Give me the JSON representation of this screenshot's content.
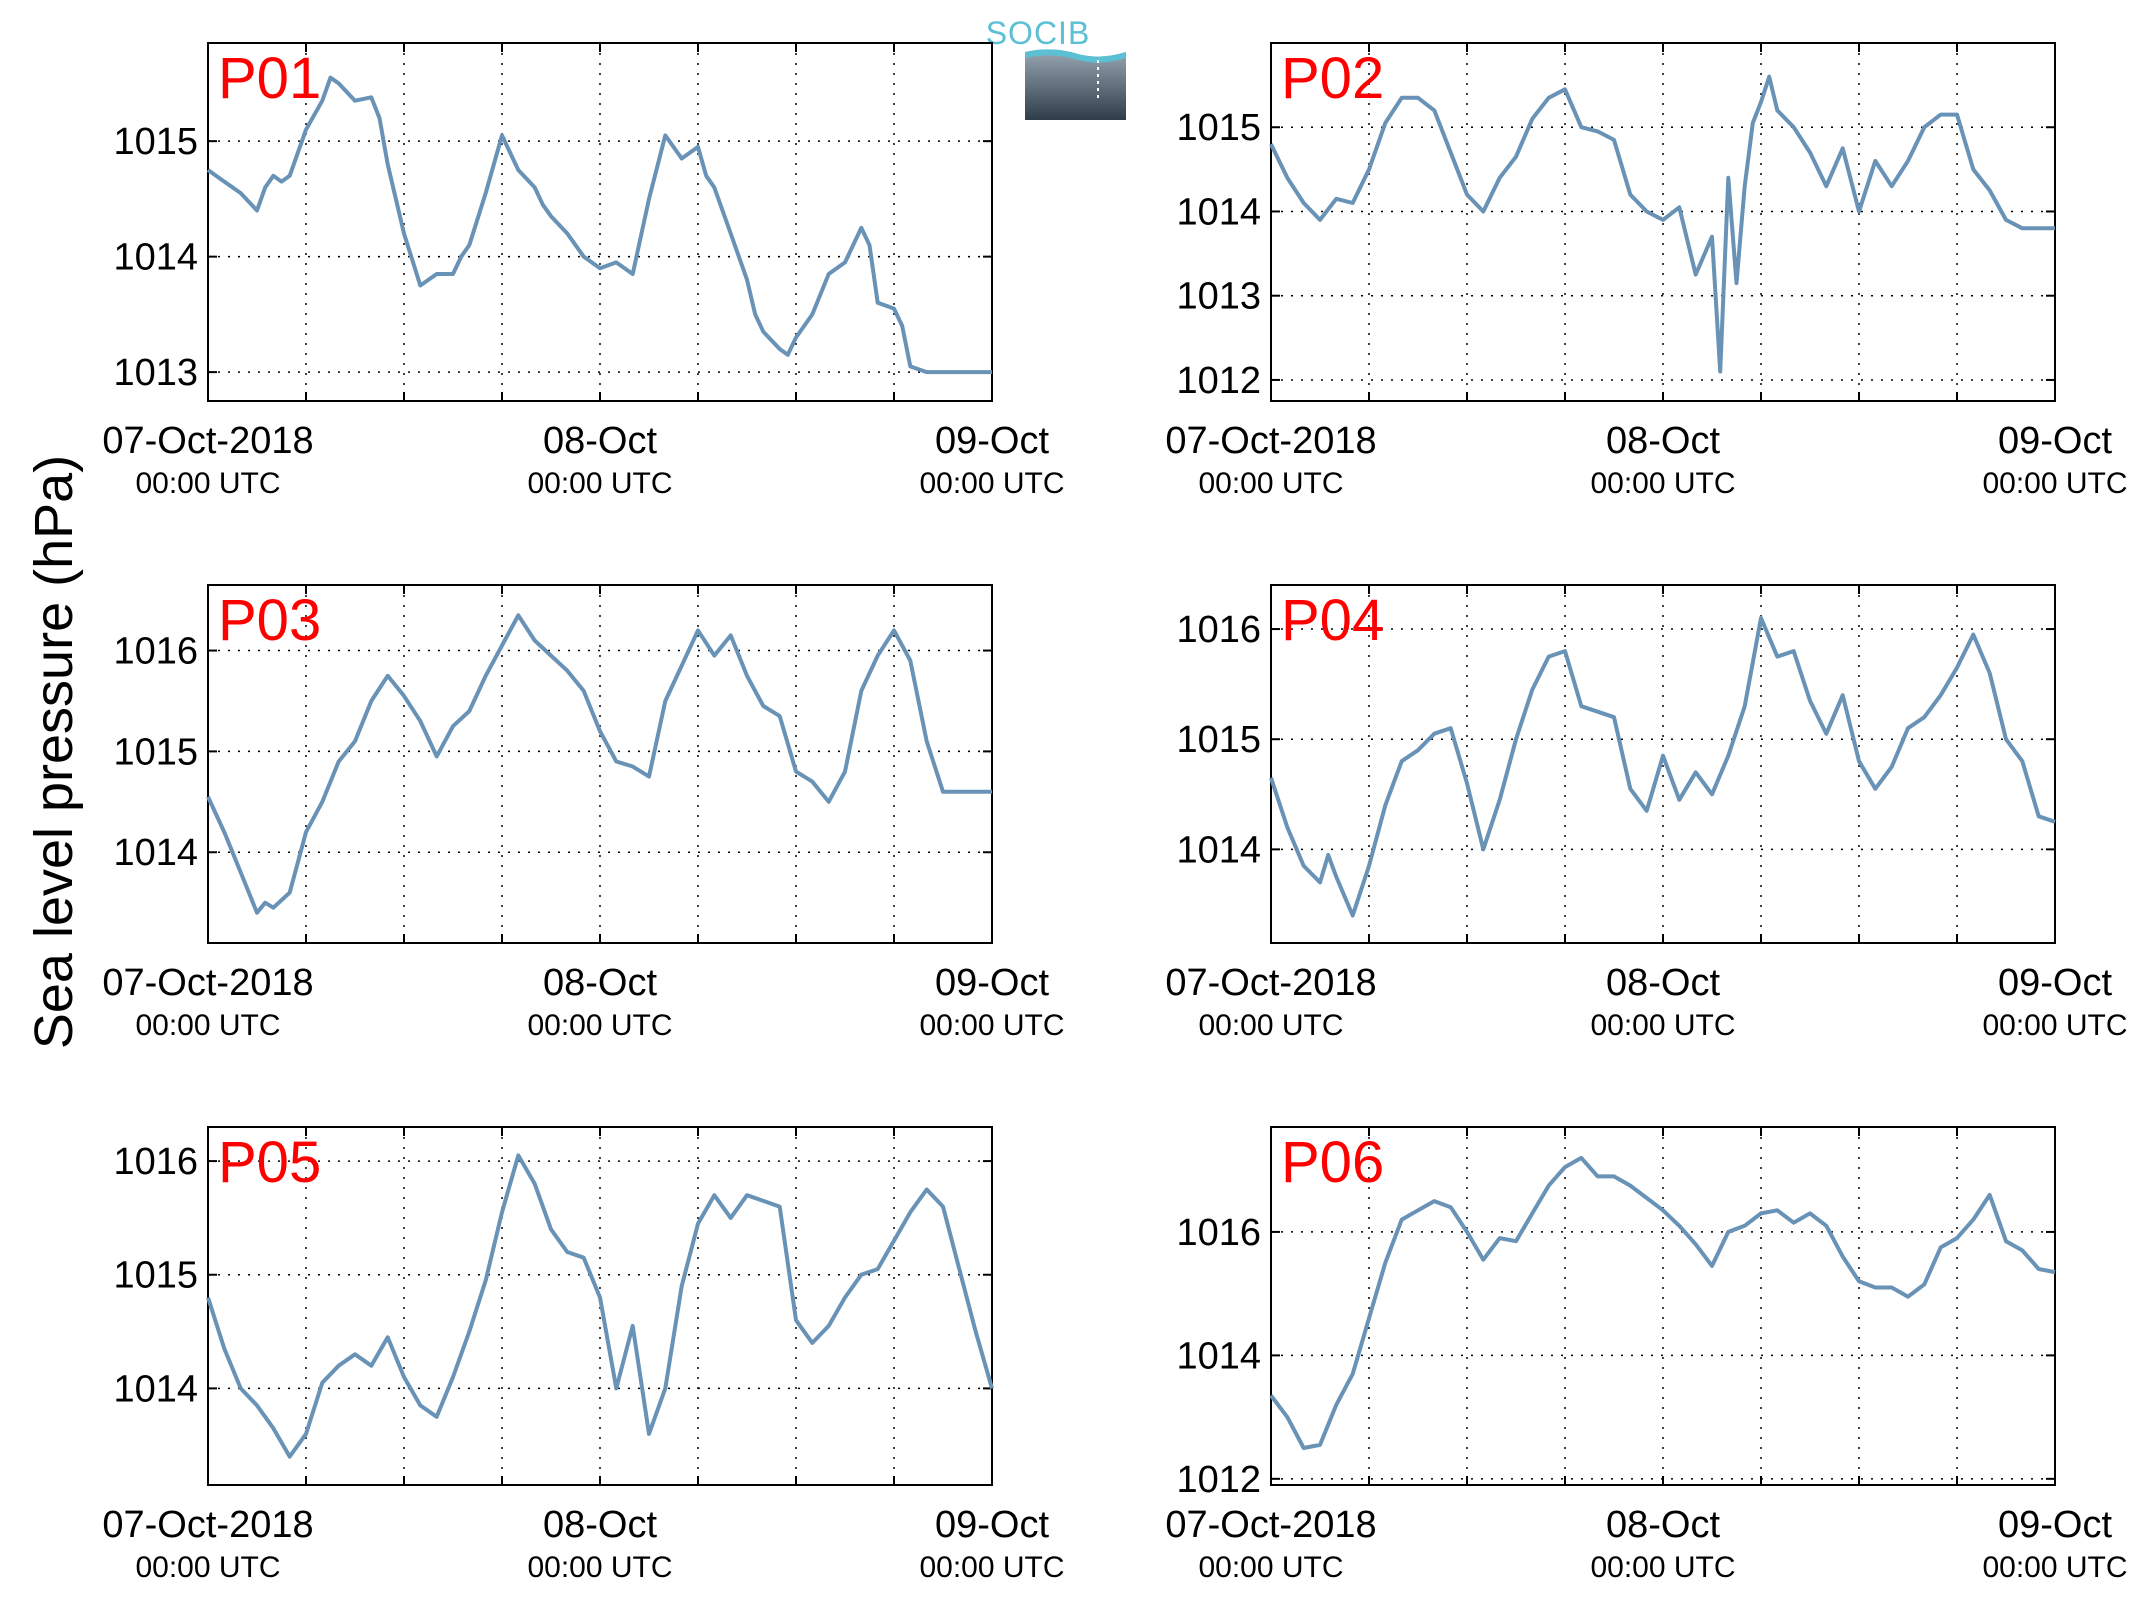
{
  "figure": {
    "ylabel": "Sea level pressure (hPa)",
    "logo_text": "SOCIB",
    "line_color": "#6892b6",
    "label_color": "#ff0000"
  },
  "chart_data": [
    {
      "type": "line",
      "label": "P01",
      "x_ticks": [
        {
          "main": "07-Oct-2018",
          "sub": "00:00 UTC"
        },
        {
          "main": "08-Oct",
          "sub": "00:00 UTC"
        },
        {
          "main": "09-Oct",
          "sub": "00:00 UTC"
        }
      ],
      "xlim_hours": [
        0,
        48
      ],
      "ylim": [
        12.75,
        15.85
      ],
      "yticks": [
        "1013",
        "1014",
        "1015"
      ],
      "ytick_values": [
        13,
        14,
        15
      ],
      "y_offset": 1000,
      "series": [
        {
          "x_hours": [
            0,
            1,
            2,
            3,
            3.5,
            4,
            4.5,
            5,
            6,
            7,
            7.5,
            8,
            9,
            10,
            10.5,
            11,
            12,
            13,
            14,
            15,
            15.5,
            16,
            17,
            18,
            19,
            20,
            20.5,
            21,
            22,
            23,
            24,
            25,
            26,
            27,
            28,
            29,
            30,
            30.5,
            31,
            32,
            33,
            33.5,
            34,
            35,
            35.5,
            36,
            37,
            38,
            39,
            40,
            40.5,
            41,
            42,
            42.5,
            43,
            44,
            45,
            45.5,
            46,
            47,
            48
          ],
          "y": [
            1014.75,
            1014.65,
            1014.55,
            1014.4,
            1014.6,
            1014.7,
            1014.65,
            1014.7,
            1015.1,
            1015.35,
            1015.55,
            1015.5,
            1015.35,
            1015.38,
            1015.2,
            1014.8,
            1014.2,
            1013.75,
            1013.85,
            1013.85,
            1014.0,
            1014.1,
            1014.55,
            1015.05,
            1014.75,
            1014.6,
            1014.45,
            1014.35,
            1014.2,
            1014.0,
            1013.9,
            1013.95,
            1013.85,
            1014.5,
            1015.05,
            1014.85,
            1014.95,
            1014.7,
            1014.6,
            1014.2,
            1013.8,
            1013.5,
            1013.35,
            1013.2,
            1013.15,
            1013.3,
            1013.5,
            1013.85,
            1013.95,
            1014.25,
            1014.1,
            1013.6,
            1013.55,
            1013.4,
            1013.05,
            1013.0,
            1013.0,
            1013.0,
            1013.0,
            1013.0,
            1013.0
          ]
        }
      ]
    },
    {
      "type": "line",
      "label": "P02",
      "x_ticks": [
        {
          "main": "07-Oct-2018",
          "sub": "00:00 UTC"
        },
        {
          "main": "08-Oct",
          "sub": "00:00 UTC"
        },
        {
          "main": "09-Oct",
          "sub": "00:00 UTC"
        }
      ],
      "xlim_hours": [
        0,
        48
      ],
      "ylim": [
        11.75,
        16.0
      ],
      "yticks": [
        "1012",
        "1013",
        "1014",
        "1015"
      ],
      "ytick_values": [
        12,
        13,
        14,
        15
      ],
      "y_offset": 1000,
      "series": [
        {
          "x_hours": [
            0,
            1,
            2,
            3,
            4,
            5,
            6,
            7,
            8,
            9,
            10,
            11,
            12,
            13,
            14,
            15,
            16,
            17,
            18,
            19,
            20,
            21,
            22,
            23,
            24,
            25,
            26,
            27,
            27.5,
            28,
            28.5,
            29,
            29.5,
            30,
            30.5,
            31,
            32,
            33,
            34,
            35,
            36,
            37,
            38,
            39,
            40,
            41,
            42,
            43,
            44,
            45,
            46,
            47,
            48
          ],
          "y": [
            1014.8,
            1014.4,
            1014.1,
            1013.9,
            1014.15,
            1014.1,
            1014.5,
            1015.05,
            1015.35,
            1015.35,
            1015.2,
            1014.7,
            1014.2,
            1014.0,
            1014.4,
            1014.65,
            1015.1,
            1015.35,
            1015.45,
            1015.0,
            1014.95,
            1014.85,
            1014.2,
            1014.0,
            1013.9,
            1014.05,
            1013.25,
            1013.7,
            1012.1,
            1014.4,
            1013.15,
            1014.3,
            1015.05,
            1015.3,
            1015.6,
            1015.2,
            1015.0,
            1014.7,
            1014.3,
            1014.75,
            1014.0,
            1014.6,
            1014.3,
            1014.6,
            1015.0,
            1015.15,
            1015.15,
            1014.5,
            1014.25,
            1013.9,
            1013.8,
            1013.8,
            1013.8
          ]
        }
      ]
    },
    {
      "type": "line",
      "label": "P03",
      "x_ticks": [
        {
          "main": "07-Oct-2018",
          "sub": "00:00 UTC"
        },
        {
          "main": "08-Oct",
          "sub": "00:00 UTC"
        },
        {
          "main": "09-Oct",
          "sub": "00:00 UTC"
        }
      ],
      "xlim_hours": [
        0,
        48
      ],
      "ylim": [
        13.1,
        16.65
      ],
      "yticks": [
        "1014",
        "1015",
        "1016"
      ],
      "ytick_values": [
        14,
        15,
        16
      ],
      "y_offset": 1000,
      "series": [
        {
          "x_hours": [
            0,
            1,
            2,
            3,
            3.5,
            4,
            5,
            6,
            7,
            8,
            9,
            10,
            11,
            12,
            13,
            14,
            15,
            16,
            17,
            18,
            19,
            20,
            21,
            22,
            23,
            24,
            25,
            26,
            27,
            28,
            29,
            30,
            31,
            32,
            33,
            34,
            35,
            36,
            37,
            38,
            39,
            40,
            41,
            42,
            43,
            44,
            45,
            46,
            47,
            48
          ],
          "y": [
            1014.55,
            1014.2,
            1013.8,
            1013.4,
            1013.5,
            1013.45,
            1013.6,
            1014.2,
            1014.5,
            1014.9,
            1015.1,
            1015.5,
            1015.75,
            1015.55,
            1015.3,
            1014.95,
            1015.25,
            1015.4,
            1015.75,
            1016.05,
            1016.35,
            1016.1,
            1015.95,
            1015.8,
            1015.6,
            1015.2,
            1014.9,
            1014.85,
            1014.75,
            1015.5,
            1015.85,
            1016.2,
            1015.95,
            1016.15,
            1015.75,
            1015.45,
            1015.35,
            1014.8,
            1014.7,
            1014.5,
            1014.8,
            1015.6,
            1015.95,
            1016.2,
            1015.9,
            1015.1,
            1014.6,
            1014.6,
            1014.6,
            1014.6
          ]
        }
      ]
    },
    {
      "type": "line",
      "label": "P04",
      "x_ticks": [
        {
          "main": "07-Oct-2018",
          "sub": "00:00 UTC"
        },
        {
          "main": "08-Oct",
          "sub": "00:00 UTC"
        },
        {
          "main": "09-Oct",
          "sub": "00:00 UTC"
        }
      ],
      "xlim_hours": [
        0,
        48
      ],
      "ylim": [
        13.15,
        16.4
      ],
      "yticks": [
        "1014",
        "1015",
        "1016"
      ],
      "ytick_values": [
        14,
        15,
        16
      ],
      "y_offset": 1000,
      "series": [
        {
          "x_hours": [
            0,
            1,
            2,
            3,
            3.5,
            4,
            5,
            6,
            7,
            8,
            9,
            10,
            11,
            12,
            13,
            14,
            15,
            16,
            17,
            18,
            19,
            20,
            21,
            22,
            23,
            24,
            25,
            26,
            27,
            28,
            29,
            30,
            31,
            32,
            33,
            34,
            35,
            36,
            37,
            38,
            39,
            40,
            41,
            42,
            43,
            44,
            45,
            46,
            47,
            48
          ],
          "y": [
            1014.65,
            1014.2,
            1013.85,
            1013.7,
            1013.95,
            1013.75,
            1013.4,
            1013.85,
            1014.4,
            1014.8,
            1014.9,
            1015.05,
            1015.1,
            1014.6,
            1014.0,
            1014.45,
            1015.0,
            1015.45,
            1015.75,
            1015.8,
            1015.3,
            1015.25,
            1015.2,
            1014.55,
            1014.35,
            1014.85,
            1014.45,
            1014.7,
            1014.5,
            1014.85,
            1015.3,
            1016.1,
            1015.75,
            1015.8,
            1015.35,
            1015.05,
            1015.4,
            1014.8,
            1014.55,
            1014.75,
            1015.1,
            1015.2,
            1015.4,
            1015.65,
            1015.95,
            1015.6,
            1015.0,
            1014.8,
            1014.3,
            1014.25
          ]
        }
      ]
    },
    {
      "type": "line",
      "label": "P05",
      "x_ticks": [
        {
          "main": "07-Oct-2018",
          "sub": "00:00 UTC"
        },
        {
          "main": "08-Oct",
          "sub": "00:00 UTC"
        },
        {
          "main": "09-Oct",
          "sub": "00:00 UTC"
        }
      ],
      "xlim_hours": [
        0,
        48
      ],
      "ylim": [
        13.15,
        16.3
      ],
      "yticks": [
        "1014",
        "1015",
        "1016"
      ],
      "ytick_values": [
        14,
        15,
        16
      ],
      "y_offset": 1000,
      "series": [
        {
          "x_hours": [
            0,
            1,
            2,
            3,
            4,
            5,
            6,
            7,
            8,
            9,
            10,
            11,
            12,
            13,
            14,
            15,
            16,
            17,
            18,
            19,
            20,
            21,
            22,
            23,
            24,
            25,
            26,
            27,
            28,
            29,
            30,
            31,
            32,
            33,
            34,
            35,
            36,
            37,
            38,
            39,
            40,
            41,
            42,
            43,
            44,
            45,
            46,
            47,
            48
          ],
          "y": [
            1014.8,
            1014.35,
            1014.0,
            1013.85,
            1013.65,
            1013.4,
            1013.6,
            1014.05,
            1014.2,
            1014.3,
            1014.2,
            1014.45,
            1014.1,
            1013.85,
            1013.75,
            1014.1,
            1014.5,
            1014.95,
            1015.55,
            1016.05,
            1015.8,
            1015.4,
            1015.2,
            1015.15,
            1014.8,
            1014.0,
            1014.55,
            1013.6,
            1014.0,
            1014.9,
            1015.45,
            1015.7,
            1015.5,
            1015.7,
            1015.65,
            1015.6,
            1014.6,
            1014.4,
            1014.55,
            1014.8,
            1015.0,
            1015.05,
            1015.3,
            1015.55,
            1015.75,
            1015.6,
            1015.05,
            1014.5,
            1014.0
          ]
        }
      ]
    },
    {
      "type": "line",
      "label": "P06",
      "x_ticks": [
        {
          "main": "07-Oct-2018",
          "sub": "00:00 UTC"
        },
        {
          "main": "08-Oct",
          "sub": "00:00 UTC"
        },
        {
          "main": "09-Oct",
          "sub": "00:00 UTC"
        }
      ],
      "xlim_hours": [
        0,
        48
      ],
      "ylim": [
        11.9,
        17.7
      ],
      "yticks": [
        "1012",
        "1014",
        "1016"
      ],
      "ytick_values": [
        12,
        14,
        16
      ],
      "y_offset": 1000,
      "series": [
        {
          "x_hours": [
            0,
            1,
            2,
            3,
            4,
            5,
            6,
            7,
            8,
            9,
            10,
            11,
            12,
            13,
            14,
            15,
            16,
            17,
            18,
            19,
            20,
            21,
            22,
            23,
            24,
            25,
            26,
            27,
            28,
            29,
            30,
            31,
            32,
            33,
            34,
            35,
            36,
            37,
            38,
            39,
            40,
            41,
            42,
            43,
            44,
            45,
            46,
            47,
            48
          ],
          "y": [
            1013.35,
            1013.0,
            1012.5,
            1012.55,
            1013.2,
            1013.7,
            1014.6,
            1015.5,
            1016.2,
            1016.35,
            1016.5,
            1016.4,
            1016.0,
            1015.55,
            1015.9,
            1015.85,
            1016.3,
            1016.75,
            1017.05,
            1017.2,
            1016.9,
            1016.9,
            1016.75,
            1016.55,
            1016.35,
            1016.1,
            1015.8,
            1015.45,
            1016.0,
            1016.1,
            1016.3,
            1016.35,
            1016.15,
            1016.3,
            1016.1,
            1015.6,
            1015.2,
            1015.1,
            1015.1,
            1014.95,
            1015.15,
            1015.75,
            1015.9,
            1016.2,
            1016.6,
            1015.85,
            1015.7,
            1015.4,
            1015.35
          ]
        }
      ]
    }
  ]
}
